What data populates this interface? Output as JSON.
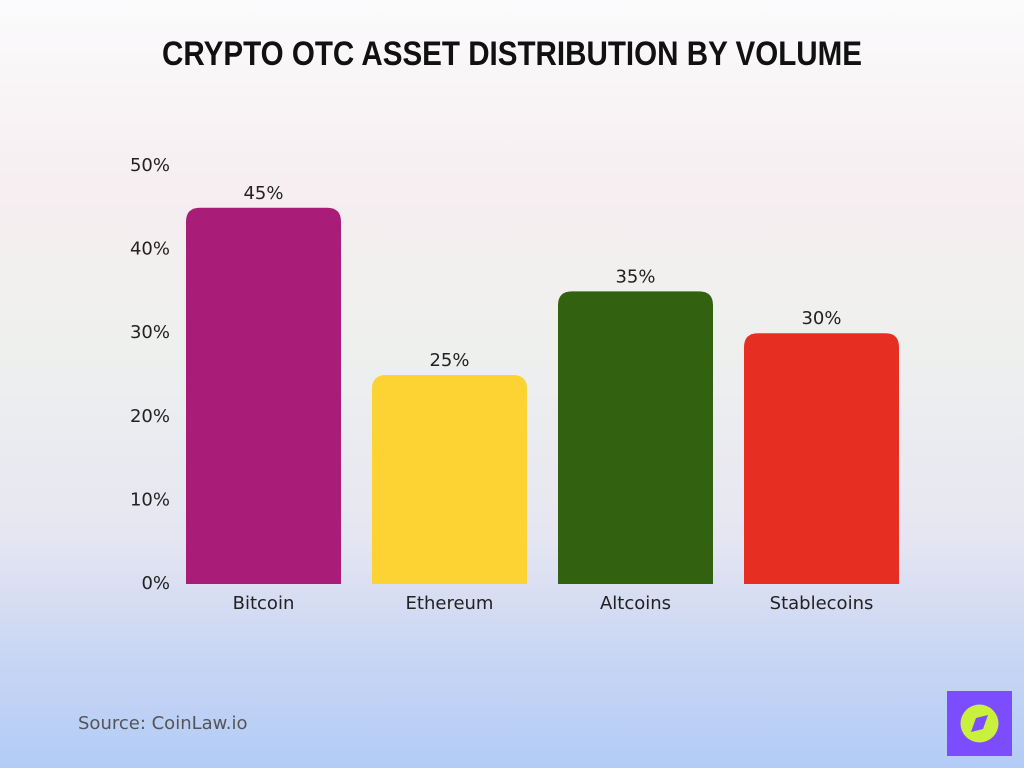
{
  "chart_data": {
    "type": "bar",
    "title": "Crypto OTC Asset Distribution by Volume",
    "categories": [
      "Bitcoin",
      "Ethereum",
      "Altcoins",
      "Stablecoins"
    ],
    "values": [
      45,
      25,
      35,
      30
    ],
    "value_labels": [
      "45%",
      "25%",
      "35%",
      "30%"
    ],
    "colors": [
      "#a91c78",
      "#fdd333",
      "#326110",
      "#e62f22"
    ],
    "ylim": [
      0,
      50
    ],
    "yticks": [
      {
        "value": 0,
        "label": "0%"
      },
      {
        "value": 10,
        "label": "10%"
      },
      {
        "value": 20,
        "label": "20%"
      },
      {
        "value": 30,
        "label": "30%"
      },
      {
        "value": 40,
        "label": "40%"
      },
      {
        "value": 50,
        "label": "50%"
      }
    ],
    "grid": false,
    "source": "Source: CoinLaw.io"
  }
}
